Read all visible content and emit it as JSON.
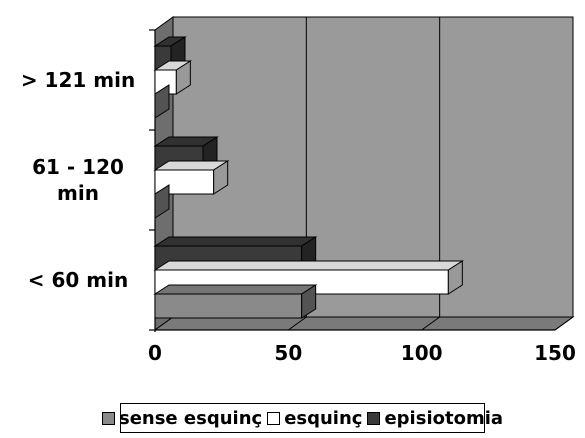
{
  "chart_data": {
    "type": "bar",
    "orientation": "horizontal",
    "categories": [
      "> 121 min",
      "61 - 120 min",
      "< 60 min"
    ],
    "category_label_lines": [
      [
        "> 121 min"
      ],
      [
        "61 - 120",
        "min"
      ],
      [
        "< 60 min"
      ]
    ],
    "series": [
      {
        "name": "sense esquinç",
        "values": [
          0,
          0,
          55
        ],
        "color": "#8a8a8a"
      },
      {
        "name": "esquinç",
        "values": [
          8,
          22,
          110
        ],
        "color": "#ffffff"
      },
      {
        "name": "episiotomia",
        "values": [
          6,
          18,
          55
        ],
        "color": "#3a3a3a"
      }
    ],
    "xlim": [
      0,
      150
    ],
    "xticks": [
      "0",
      "50",
      "100",
      "150"
    ],
    "grid": true,
    "three_d": true,
    "wall_color": "#9a9a9a",
    "legend_position": "bottom"
  }
}
